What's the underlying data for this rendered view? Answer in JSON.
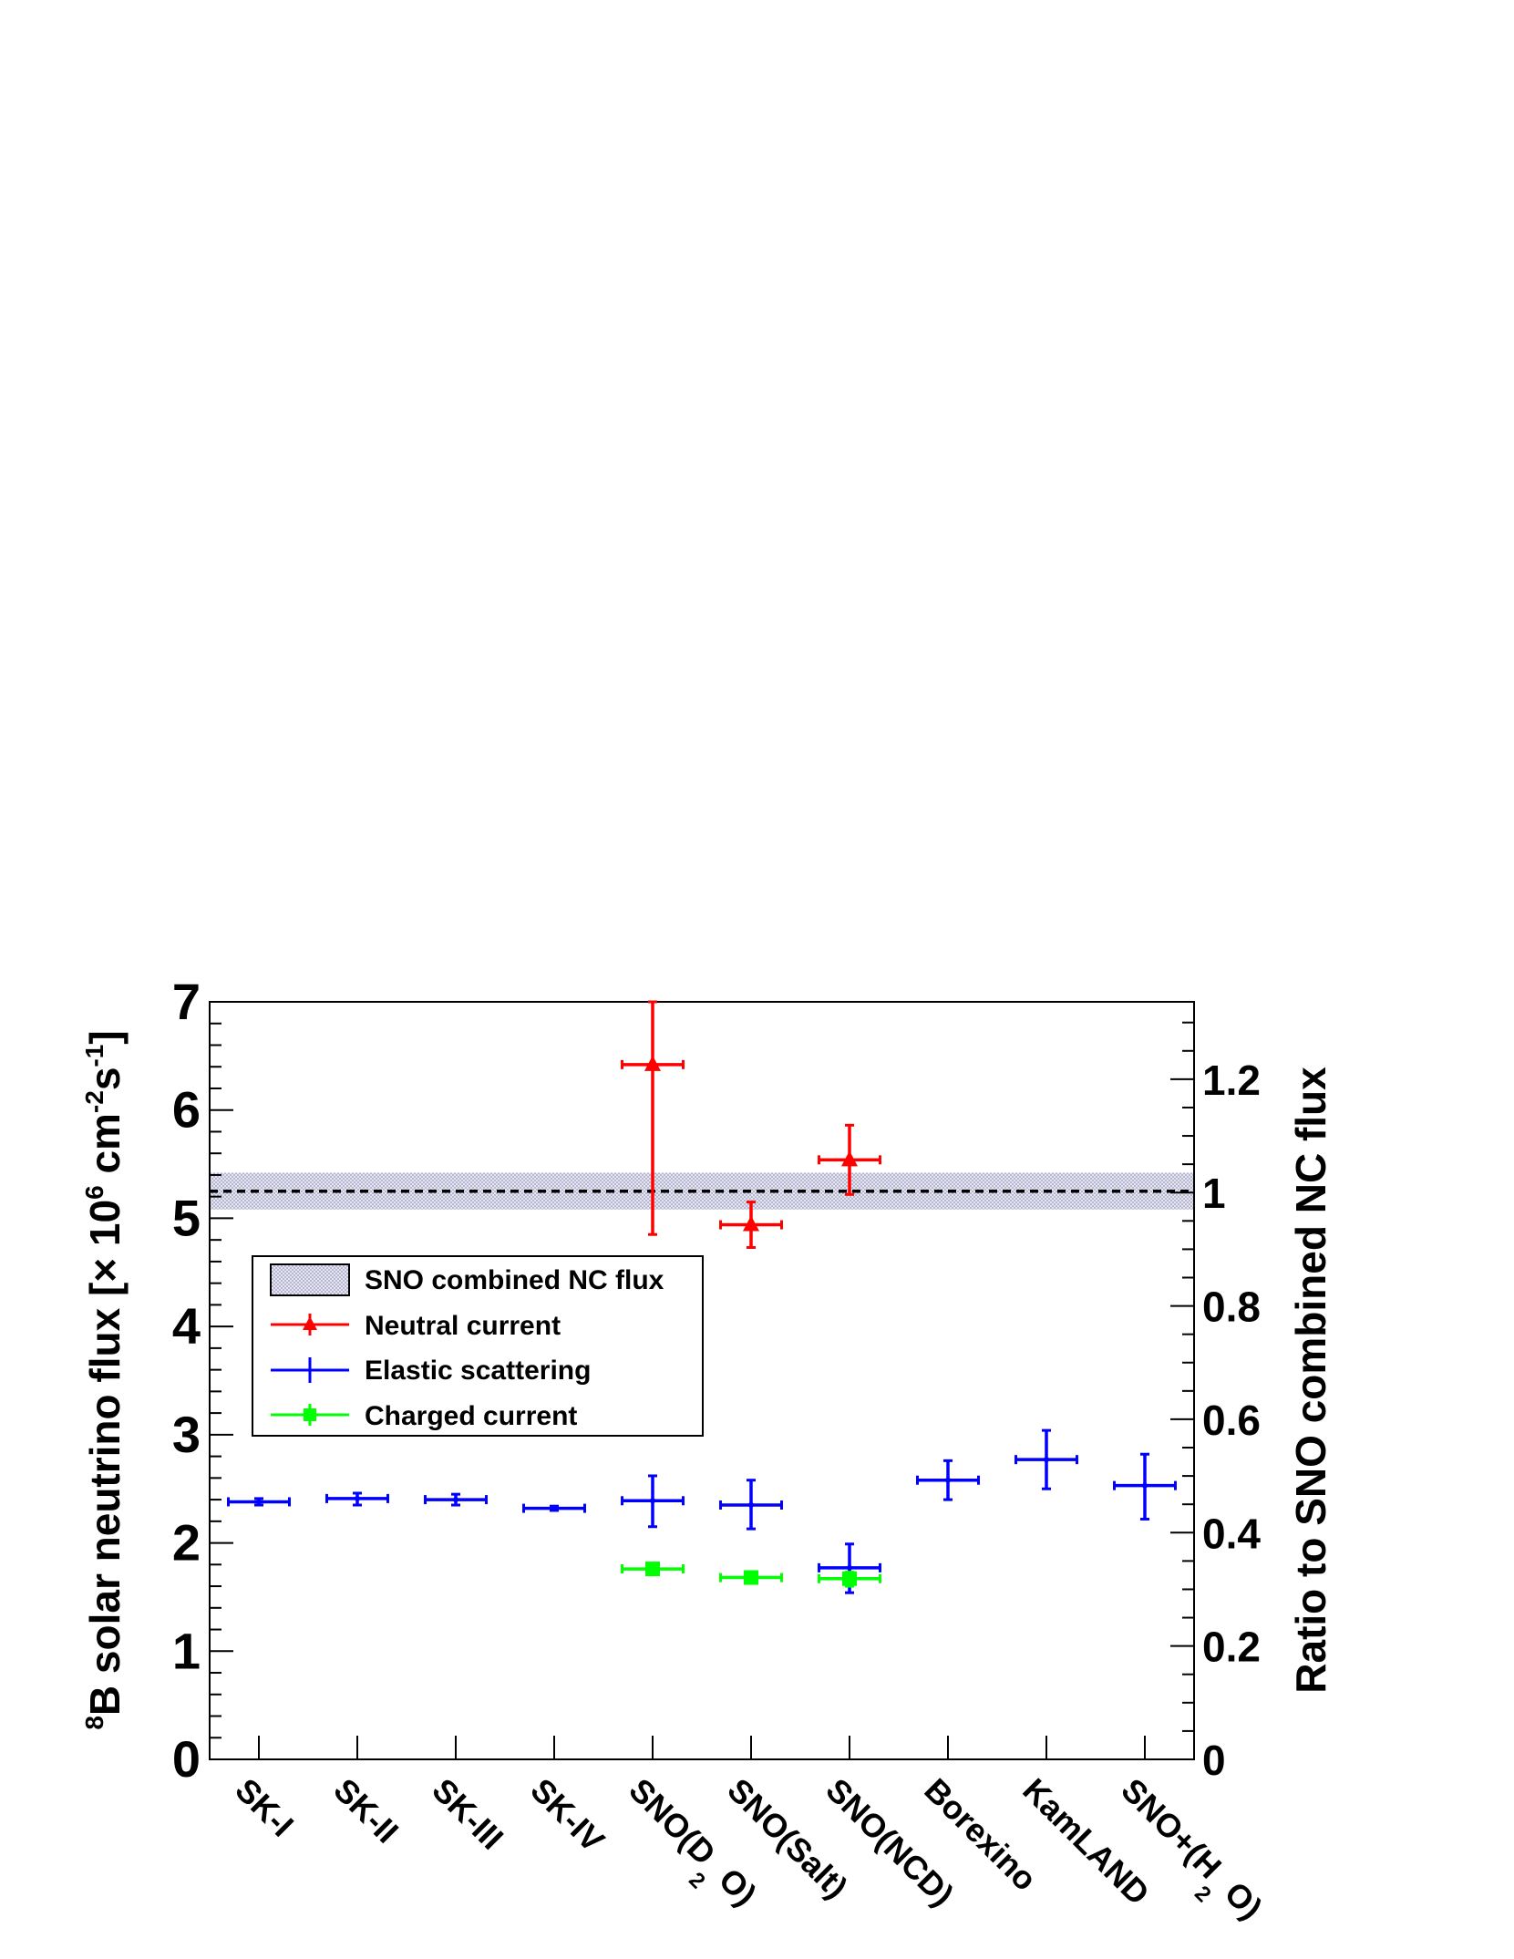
{
  "chart_data": {
    "type": "scatter",
    "categories": [
      "SK-I",
      "SK-II",
      "SK-III",
      "SK-IV",
      "SNO(D",
      "SNO(Salt)",
      "SNO(NCD)",
      "Borexino",
      "KamLAND",
      "SNO+(H"
    ],
    "category_subscripts": [
      "",
      "",
      "",
      "",
      "2",
      "",
      "",
      "",
      "",
      "2"
    ],
    "category_suffixes": [
      "",
      "",
      "",
      "",
      " O)",
      "",
      "",
      "",
      "",
      " O)"
    ],
    "ylabel": {
      "sup1": "8",
      "text1": "B solar neutrino flux [",
      "times": "×",
      "text2": " 10",
      "sup2": "6",
      "text3": " cm",
      "sup3": "-2",
      "text4": "s",
      "sup4": "-1",
      "text5": "]"
    },
    "y2label": "Ratio to SNO combined NC flux",
    "ylim": [
      0,
      7
    ],
    "yticks": [
      0,
      1,
      2,
      3,
      4,
      5,
      6,
      7
    ],
    "y2lim": [
      0,
      1.3365
    ],
    "y2ticks": [
      0,
      0.2,
      0.4,
      0.6,
      0.8,
      1,
      1.2
    ],
    "y2tick_labels": [
      "0",
      "0.2",
      "0.4",
      "0.6",
      "0.8",
      "1",
      "1.2"
    ],
    "band": {
      "name": "SNO combined NC flux",
      "center": 5.25,
      "low": 5.08,
      "high": 5.42,
      "color": "#c8c8e0"
    },
    "series": [
      {
        "name": "Neutral current",
        "color": "#ff0000",
        "marker": "triangle",
        "points": [
          {
            "x": 4,
            "y": 6.42,
            "ylo": 4.85,
            "yhi": 7.0
          },
          {
            "x": 5,
            "y": 4.94,
            "ylo": 4.73,
            "yhi": 5.15
          },
          {
            "x": 6,
            "y": 5.54,
            "ylo": 5.22,
            "yhi": 5.86
          }
        ]
      },
      {
        "name": "Elastic scattering",
        "color": "#0000ff",
        "marker": "none",
        "points": [
          {
            "x": 0,
            "y": 2.38,
            "ylo": 2.35,
            "yhi": 2.41
          },
          {
            "x": 1,
            "y": 2.41,
            "ylo": 2.35,
            "yhi": 2.46
          },
          {
            "x": 2,
            "y": 2.4,
            "ylo": 2.35,
            "yhi": 2.45
          },
          {
            "x": 3,
            "y": 2.32,
            "ylo": 2.3,
            "yhi": 2.34
          },
          {
            "x": 4,
            "y": 2.39,
            "ylo": 2.15,
            "yhi": 2.62
          },
          {
            "x": 5,
            "y": 2.35,
            "ylo": 2.13,
            "yhi": 2.58
          },
          {
            "x": 6,
            "y": 1.77,
            "ylo": 1.54,
            "yhi": 1.99
          },
          {
            "x": 7,
            "y": 2.58,
            "ylo": 2.4,
            "yhi": 2.76
          },
          {
            "x": 8,
            "y": 2.77,
            "ylo": 2.5,
            "yhi": 3.04
          },
          {
            "x": 9,
            "y": 2.53,
            "ylo": 2.22,
            "yhi": 2.82
          }
        ]
      },
      {
        "name": "Charged current",
        "color": "#00ff00",
        "marker": "square",
        "points": [
          {
            "x": 4,
            "y": 1.76,
            "ylo": 1.71,
            "yhi": 1.81
          },
          {
            "x": 5,
            "y": 1.68,
            "ylo": 1.64,
            "yhi": 1.72
          },
          {
            "x": 6,
            "y": 1.67,
            "ylo": 1.6,
            "yhi": 1.73
          }
        ]
      }
    ],
    "legend": {
      "position": "center-left",
      "entries": [
        "SNO combined NC flux",
        "Neutral current",
        "Elastic scattering",
        "Charged current"
      ]
    },
    "grid": false
  }
}
